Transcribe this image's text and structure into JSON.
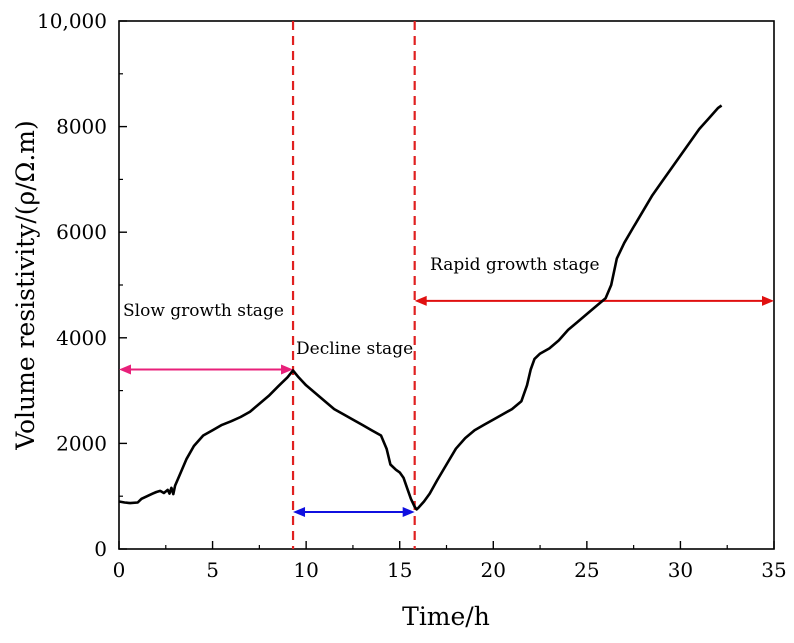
{
  "chart_data": {
    "type": "line",
    "title": "",
    "xlabel": "Time/h",
    "ylabel": "Volume resistivity/(ρ/Ω.m)",
    "xlim": [
      0,
      35
    ],
    "ylim": [
      0,
      10000
    ],
    "xticks": [
      0,
      5,
      10,
      15,
      20,
      25,
      30,
      35
    ],
    "xtick_labels": [
      "0",
      "5",
      "10",
      "15",
      "20",
      "25",
      "30",
      "35"
    ],
    "yticks": [
      0,
      2000,
      4000,
      6000,
      8000,
      10000
    ],
    "ytick_labels": [
      "0",
      "2000",
      "4000",
      "6000",
      "8000",
      "10,000"
    ],
    "grid": false,
    "series": [
      {
        "name": "Volume resistivity",
        "color": "#000000",
        "x": [
          0,
          0.3,
          0.6,
          1.0,
          1.2,
          1.5,
          1.8,
          2.0,
          2.2,
          2.4,
          2.6,
          2.7,
          2.8,
          2.9,
          3.0,
          3.3,
          3.6,
          4.0,
          4.5,
          5.0,
          5.5,
          6.0,
          6.5,
          7.0,
          7.5,
          8.0,
          8.5,
          9.0,
          9.3,
          9.6,
          10.0,
          10.5,
          11.0,
          11.5,
          12.0,
          12.5,
          13.0,
          13.5,
          14.0,
          14.3,
          14.5,
          14.8,
          15.0,
          15.2,
          15.4,
          15.6,
          15.8,
          15.9,
          16.0,
          16.3,
          16.6,
          17.0,
          17.5,
          18.0,
          18.5,
          19.0,
          19.5,
          20.0,
          20.5,
          21.0,
          21.5,
          21.8,
          22.0,
          22.2,
          22.5,
          23.0,
          23.5,
          24.0,
          24.5,
          25.0,
          25.5,
          26.0,
          26.3,
          26.6,
          27.0,
          27.5,
          28.0,
          28.5,
          29.0,
          29.5,
          30.0,
          30.5,
          31.0,
          31.5,
          32.0,
          32.2
        ],
        "y": [
          900,
          880,
          870,
          880,
          950,
          1000,
          1050,
          1080,
          1100,
          1060,
          1120,
          1050,
          1160,
          1040,
          1200,
          1450,
          1700,
          1950,
          2150,
          2250,
          2350,
          2420,
          2500,
          2600,
          2750,
          2900,
          3080,
          3250,
          3380,
          3250,
          3100,
          2950,
          2800,
          2650,
          2550,
          2450,
          2350,
          2250,
          2150,
          1900,
          1600,
          1500,
          1450,
          1350,
          1150,
          950,
          800,
          750,
          780,
          900,
          1050,
          1300,
          1600,
          1900,
          2100,
          2250,
          2350,
          2450,
          2550,
          2650,
          2800,
          3100,
          3400,
          3600,
          3700,
          3800,
          3950,
          4150,
          4300,
          4450,
          4600,
          4750,
          5000,
          5500,
          5800,
          6100,
          6400,
          6700,
          6950,
          7200,
          7450,
          7700,
          7950,
          8150,
          8350,
          8400
        ]
      }
    ],
    "vlines": [
      {
        "x": 9.3,
        "color": "#e02020",
        "style": "dashed"
      },
      {
        "x": 15.8,
        "color": "#e02020",
        "style": "dashed"
      }
    ],
    "annotations": [
      {
        "text": "Slow growth stage",
        "x": 0.2,
        "y": 4400,
        "color": "#e8207a",
        "arrow": {
          "x1": 0,
          "x2": 9.3,
          "y": 3400
        }
      },
      {
        "text": "Decline stage",
        "x": 9.4,
        "y": 3600,
        "color": "#1010e0",
        "arrow": {
          "x1": 9.3,
          "x2": 15.8,
          "y": 700
        }
      },
      {
        "text": "Rapid growth stage",
        "x": 16.6,
        "y": 5300,
        "color": "#e01010",
        "arrow": {
          "x1": 15.8,
          "x2": 35,
          "y": 4700
        }
      }
    ]
  }
}
